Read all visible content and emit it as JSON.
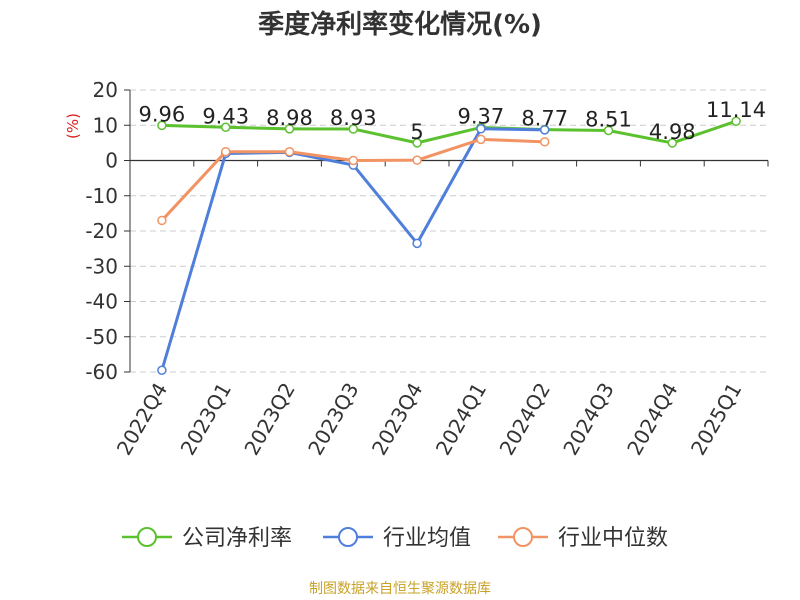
{
  "chart_data": {
    "type": "line",
    "title": "季度净利率变化情况(%)",
    "ylabel": "(%)",
    "xlabel": "",
    "ylim": [
      -60,
      20
    ],
    "yticks": [
      20,
      10,
      0,
      -10,
      -20,
      -30,
      -40,
      -50,
      -60
    ],
    "grid": true,
    "legend_position": "bottom",
    "categories": [
      "2022Q4",
      "2023Q1",
      "2023Q2",
      "2023Q3",
      "2023Q4",
      "2024Q1",
      "2024Q2",
      "2024Q3",
      "2024Q4",
      "2025Q1"
    ],
    "series": [
      {
        "name": "公司净利率",
        "color": "#5cc12e",
        "values": [
          9.96,
          9.43,
          8.98,
          8.93,
          5,
          9.37,
          8.77,
          8.51,
          4.98,
          11.14
        ],
        "labels": [
          "9.96",
          "9.43",
          "8.98",
          "8.93",
          "5",
          "9.37",
          "8.77",
          "8.51",
          "4.98",
          "11.14"
        ]
      },
      {
        "name": "行业均值",
        "color": "#4f7fdb",
        "values": [
          -59.5,
          2.0,
          2.3,
          -1.3,
          -23.5,
          9.0,
          8.7,
          null,
          null,
          null
        ]
      },
      {
        "name": "行业中位数",
        "color": "#f29363",
        "values": [
          -17.0,
          2.5,
          2.5,
          0.0,
          0.1,
          6.0,
          5.3,
          null,
          null,
          null
        ]
      }
    ]
  },
  "source_note": "制图数据来自恒生聚源数据库"
}
